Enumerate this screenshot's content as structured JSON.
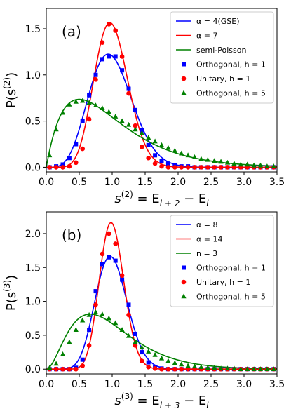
{
  "chart_data": [
    {
      "type": "line",
      "panel_label": "(a)",
      "xlabel": "s^(2) = E_{i+2} − E_i",
      "xlabel_parts": {
        "base": "s",
        "sup": "(2)",
        "mid": " = E",
        "sub1": "i + 2",
        "tail": " − E",
        "sub2": "i"
      },
      "ylabel": "P(s^(2))",
      "ylabel_parts": {
        "base": "P(s",
        "sup": "(2)",
        "tail": ")"
      },
      "xlim": [
        0.0,
        3.5
      ],
      "ylim": [
        -0.05,
        1.72
      ],
      "x_ticks": [
        0.0,
        0.5,
        1.0,
        1.5,
        2.0,
        2.5,
        3.0,
        3.5
      ],
      "x_tick_labels": [
        "0.0",
        "0.5",
        "1.0",
        "1.5",
        "2.0",
        "2.5",
        "3.0",
        "3.5"
      ],
      "y_ticks": [
        0.0,
        0.5,
        1.0,
        1.5
      ],
      "y_tick_labels": [
        "0.0",
        "0.5",
        "1.0",
        "1.5"
      ],
      "grid": false,
      "legend_position": "top-right",
      "series": [
        {
          "name": "α = 4(GSE)",
          "kind": "line",
          "color": "#0000ff",
          "dist": "wigner",
          "beta": 4,
          "mean": 1.0
        },
        {
          "name": "α = 7",
          "kind": "line",
          "color": "#ff0000",
          "dist": "wigner",
          "beta": 7,
          "mean": 1.0
        },
        {
          "name": "semi-Poisson",
          "kind": "line",
          "color": "#008000",
          "dist": "semipoisson",
          "beta": 1,
          "mean": 1.0
        },
        {
          "name": "Orthogonal, h = 1",
          "kind": "marker",
          "marker": "square",
          "color": "#0000ff",
          "x": [
            0.05,
            0.15,
            0.25,
            0.35,
            0.45,
            0.55,
            0.65,
            0.75,
            0.85,
            0.95,
            1.05,
            1.15,
            1.25,
            1.35,
            1.45,
            1.55,
            1.65,
            1.75,
            1.85,
            1.95,
            2.05,
            2.15,
            2.25,
            2.35,
            2.45,
            2.55,
            2.65,
            2.75,
            2.85,
            2.95,
            3.05,
            3.15,
            3.25,
            3.35,
            3.45
          ],
          "y": [
            0.0,
            0.01,
            0.03,
            0.1,
            0.25,
            0.5,
            0.78,
            1.0,
            1.17,
            1.2,
            1.2,
            1.05,
            0.85,
            0.62,
            0.4,
            0.24,
            0.13,
            0.07,
            0.04,
            0.02,
            0.01,
            0.01,
            0.0,
            0.0,
            0.0,
            0.0,
            0.0,
            0.0,
            0.0,
            0.0,
            0.0,
            0.0,
            0.0,
            0.0,
            0.0
          ]
        },
        {
          "name": "Unitary, h = 1",
          "kind": "marker",
          "marker": "circle",
          "color": "#ff0000",
          "x": [
            0.05,
            0.15,
            0.25,
            0.35,
            0.45,
            0.55,
            0.65,
            0.75,
            0.85,
            0.95,
            1.05,
            1.15,
            1.25,
            1.35,
            1.45,
            1.55,
            1.65,
            1.75,
            1.85,
            1.95,
            2.05,
            2.15,
            2.25,
            2.35,
            2.45,
            2.55,
            2.65,
            2.75,
            2.85,
            2.95,
            3.05,
            3.15,
            3.25,
            3.35,
            3.45
          ],
          "y": [
            0.0,
            0.0,
            0.0,
            0.01,
            0.05,
            0.2,
            0.52,
            0.95,
            1.35,
            1.55,
            1.48,
            1.2,
            0.8,
            0.45,
            0.22,
            0.1,
            0.04,
            0.01,
            0.0,
            0.0,
            0.0,
            0.0,
            0.0,
            0.0,
            0.0,
            0.0,
            0.0,
            0.0,
            0.0,
            0.0,
            0.0,
            0.0,
            0.0,
            0.0,
            0.0
          ]
        },
        {
          "name": "Orthogonal, h = 5",
          "kind": "marker",
          "marker": "triangle",
          "color": "#008000",
          "x": [
            0.05,
            0.15,
            0.25,
            0.35,
            0.45,
            0.55,
            0.65,
            0.75,
            0.85,
            0.95,
            1.05,
            1.15,
            1.25,
            1.35,
            1.45,
            1.55,
            1.65,
            1.75,
            1.85,
            1.95,
            2.05,
            2.15,
            2.25,
            2.35,
            2.45,
            2.55,
            2.65,
            2.75,
            2.85,
            2.95,
            3.05,
            3.15,
            3.25,
            3.35,
            3.45
          ],
          "y": [
            0.13,
            0.41,
            0.59,
            0.68,
            0.71,
            0.72,
            0.7,
            0.67,
            0.64,
            0.6,
            0.55,
            0.5,
            0.46,
            0.41,
            0.37,
            0.32,
            0.28,
            0.24,
            0.21,
            0.18,
            0.15,
            0.13,
            0.11,
            0.09,
            0.08,
            0.07,
            0.06,
            0.05,
            0.04,
            0.03,
            0.03,
            0.02,
            0.02,
            0.01,
            0.01
          ]
        }
      ]
    },
    {
      "type": "line",
      "panel_label": "(b)",
      "xlabel": "s^(3) = E_{i+3} − E_i",
      "xlabel_parts": {
        "base": "s",
        "sup": "(3)",
        "mid": " = E",
        "sub1": "i + 3",
        "tail": " − E",
        "sub2": "i"
      },
      "ylabel": "P(s^(3))",
      "ylabel_parts": {
        "base": "P(s",
        "sup": "(3)",
        "tail": ")"
      },
      "xlim": [
        0.0,
        3.5
      ],
      "ylim": [
        -0.07,
        2.32
      ],
      "x_ticks": [
        0.0,
        0.5,
        1.0,
        1.5,
        2.0,
        2.5,
        3.0,
        3.5
      ],
      "x_tick_labels": [
        "0.0",
        "0.5",
        "1.0",
        "1.5",
        "2.0",
        "2.5",
        "3.0",
        "3.5"
      ],
      "y_ticks": [
        0.0,
        0.5,
        1.0,
        1.5,
        2.0
      ],
      "y_tick_labels": [
        "0.0",
        "0.5",
        "1.0",
        "1.5",
        "2.0"
      ],
      "grid": false,
      "legend_position": "top-right",
      "series": [
        {
          "name": "α = 8",
          "kind": "line",
          "color": "#0000ff",
          "dist": "wigner",
          "beta": 8,
          "mean": 1.0
        },
        {
          "name": "α = 14",
          "kind": "line",
          "color": "#ff0000",
          "dist": "wigner",
          "beta": 14,
          "mean": 1.0
        },
        {
          "name": "n = 3",
          "kind": "line",
          "color": "#008000",
          "dist": "semipoisson",
          "beta": 2,
          "mean": 1.0
        },
        {
          "name": "Orthogonal, h = 1",
          "kind": "marker",
          "marker": "square",
          "color": "#0000ff",
          "x": [
            0.05,
            0.15,
            0.25,
            0.35,
            0.45,
            0.55,
            0.65,
            0.75,
            0.85,
            0.95,
            1.05,
            1.15,
            1.25,
            1.35,
            1.45,
            1.55,
            1.65,
            1.75,
            1.85,
            1.95,
            2.05,
            2.15,
            2.25,
            2.35,
            2.45,
            2.55,
            2.65,
            2.75,
            2.85,
            2.95,
            3.05,
            3.15,
            3.25,
            3.35,
            3.45
          ],
          "y": [
            0.0,
            0.0,
            0.0,
            0.0,
            0.02,
            0.14,
            0.58,
            1.15,
            1.55,
            1.65,
            1.6,
            1.32,
            0.95,
            0.52,
            0.25,
            0.1,
            0.03,
            0.01,
            0.0,
            0.0,
            0.0,
            0.0,
            0.0,
            0.0,
            0.0,
            0.0,
            0.0,
            0.0,
            0.0,
            0.0,
            0.0,
            0.0,
            0.0,
            0.0,
            0.0
          ]
        },
        {
          "name": "Unitary, h = 1",
          "kind": "marker",
          "marker": "circle",
          "color": "#ff0000",
          "x": [
            0.05,
            0.15,
            0.25,
            0.35,
            0.45,
            0.55,
            0.65,
            0.75,
            0.85,
            0.95,
            1.05,
            1.15,
            1.25,
            1.35,
            1.45,
            1.55,
            1.65,
            1.75,
            1.85,
            1.95,
            2.05,
            2.15,
            2.25,
            2.35,
            2.45,
            2.55,
            2.65,
            2.75,
            2.85,
            2.95,
            3.05,
            3.15,
            3.25,
            3.35,
            3.45
          ],
          "y": [
            0.0,
            0.0,
            0.0,
            0.0,
            0.0,
            0.05,
            0.35,
            0.95,
            1.7,
            2.0,
            1.85,
            1.38,
            0.8,
            0.35,
            0.12,
            0.03,
            0.01,
            0.0,
            0.0,
            0.0,
            0.0,
            0.0,
            0.0,
            0.0,
            0.0,
            0.0,
            0.0,
            0.0,
            0.0,
            0.0,
            0.0,
            0.0,
            0.0,
            0.0,
            0.0
          ]
        },
        {
          "name": "Orthogonal, h = 5",
          "kind": "marker",
          "marker": "triangle",
          "color": "#008000",
          "x": [
            0.05,
            0.15,
            0.25,
            0.35,
            0.45,
            0.55,
            0.65,
            0.75,
            0.85,
            0.95,
            1.05,
            1.15,
            1.25,
            1.35,
            1.45,
            1.55,
            1.65,
            1.75,
            1.85,
            1.95,
            2.05,
            2.15,
            2.25,
            2.35,
            2.45,
            2.55,
            2.65,
            2.75,
            2.85,
            2.95,
            3.05,
            3.15,
            3.25,
            3.35,
            3.45
          ],
          "y": [
            0.02,
            0.08,
            0.22,
            0.4,
            0.58,
            0.72,
            0.8,
            0.84,
            0.81,
            0.75,
            0.68,
            0.58,
            0.49,
            0.4,
            0.32,
            0.26,
            0.21,
            0.16,
            0.12,
            0.09,
            0.07,
            0.05,
            0.04,
            0.03,
            0.02,
            0.02,
            0.01,
            0.01,
            0.01,
            0.0,
            0.0,
            0.0,
            0.0,
            0.0,
            0.0
          ]
        }
      ]
    }
  ]
}
